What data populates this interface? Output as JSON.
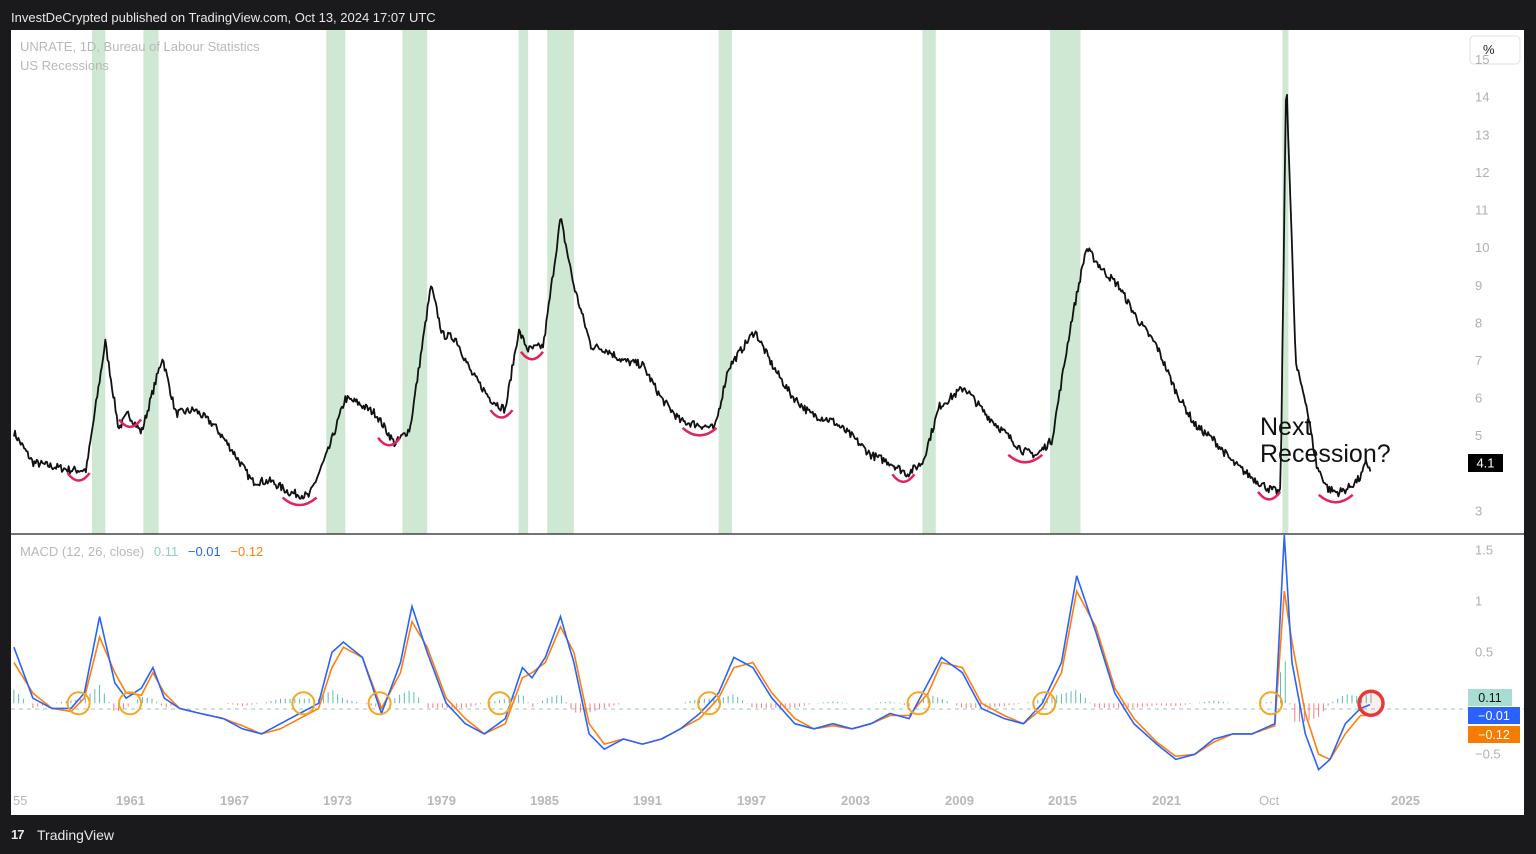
{
  "header": {
    "publisher_line": "InvestDeCrypted published on TradingView.com, Oct 13, 2024 17:07 UTC"
  },
  "footer": {
    "logo_glyph": "17",
    "brand": "TradingView"
  },
  "main_pane": {
    "symbol_legend": "UNRATE, 1D, Bureau of Labour Statistics",
    "indicator_legend": "US Recessions",
    "unit_button": "%",
    "last_value_tag": "4.1",
    "annotation_line1": "Next",
    "annotation_line2": "Recession?",
    "y_ticks": [
      "15",
      "14",
      "13",
      "12",
      "11",
      "10",
      "9",
      "8",
      "7",
      "6",
      "5",
      "3"
    ]
  },
  "macd_pane": {
    "legend_name": "MACD (12, 26, close)",
    "legend_hist": "0.11",
    "legend_macd": "−0.01",
    "legend_signal": "−0.12",
    "y_ticks": [
      "1.5",
      "1",
      "0.5",
      "−0.5"
    ],
    "tag_hist": "0.11",
    "tag_macd": "−0.01",
    "tag_signal": "−0.12"
  },
  "x_axis": {
    "ticks": [
      "55",
      "1961",
      "1967",
      "1973",
      "1979",
      "1985",
      "1991",
      "1997",
      "2003",
      "2009",
      "2015",
      "2021",
      "Oct",
      "2025"
    ]
  },
  "colors": {
    "recession_band": "#cfe8d4",
    "price_line": "#111111",
    "trough_marker": "#e0245e",
    "macd_line": "#2962ff",
    "signal_line": "#ff7f0e",
    "hist_positive": "#26a69a",
    "hist_negative": "#ef5350",
    "crossover_circle": "#f5a623",
    "current_circle": "#e53935"
  },
  "chart_data": [
    {
      "type": "line",
      "series_label": "UNRATE",
      "y_unit": "%",
      "ylim": [
        2.4,
        15.8
      ],
      "recessions": [
        [
          1957.6,
          1958.3
        ],
        [
          1960.3,
          1961.1
        ],
        [
          1969.9,
          1970.9
        ],
        [
          1973.9,
          1975.2
        ],
        [
          1980.0,
          1980.5
        ],
        [
          1981.5,
          1982.9
        ],
        [
          1990.5,
          1991.2
        ],
        [
          2001.2,
          2001.9
        ],
        [
          2007.9,
          2009.5
        ],
        [
          2020.1,
          2020.3
        ]
      ],
      "x": [
        1953.5,
        1954.5,
        1955.5,
        1956.5,
        1957.3,
        1958.3,
        1959.0,
        1959.5,
        1960.2,
        1961.3,
        1962.0,
        1963.0,
        1964.0,
        1965.0,
        1966.0,
        1967.0,
        1968.0,
        1969.0,
        1970.0,
        1970.9,
        1971.5,
        1972.5,
        1973.5,
        1974.3,
        1975.4,
        1976.0,
        1976.7,
        1977.5,
        1978.5,
        1979.3,
        1980.0,
        1980.5,
        1981.3,
        1982.2,
        1982.9,
        1983.8,
        1984.6,
        1985.5,
        1986.5,
        1987.5,
        1988.5,
        1989.5,
        1990.3,
        1991.0,
        1992.4,
        1993.3,
        1994.3,
        1995.3,
        1996.5,
        1997.5,
        1998.5,
        1999.5,
        2000.4,
        2001.2,
        2002.1,
        2003.4,
        2004.5,
        2005.5,
        2006.5,
        2007.2,
        2008.0,
        2009.0,
        2009.8,
        2010.7,
        2011.5,
        2012.5,
        2013.5,
        2014.5,
        2015.5,
        2016.5,
        2017.5,
        2018.5,
        2019.4,
        2020.0,
        2020.3,
        2020.8,
        2021.3,
        2021.9,
        2022.5,
        2023.0,
        2023.5,
        2024.2,
        2024.5,
        2024.75
      ],
      "y": [
        5.1,
        4.3,
        4.2,
        4.1,
        4.1,
        7.5,
        5.2,
        5.6,
        5.1,
        7.1,
        5.6,
        5.7,
        5.3,
        4.6,
        3.8,
        3.8,
        3.5,
        3.4,
        4.6,
        6.0,
        5.9,
        5.6,
        4.8,
        5.2,
        9.0,
        7.7,
        7.6,
        6.7,
        6.0,
        5.7,
        7.8,
        7.3,
        7.4,
        10.8,
        9.0,
        7.4,
        7.3,
        7.0,
        6.9,
        6.0,
        5.4,
        5.3,
        5.2,
        6.8,
        7.8,
        6.9,
        6.1,
        5.6,
        5.4,
        5.0,
        4.5,
        4.3,
        4.0,
        4.3,
        5.8,
        6.3,
        5.6,
        5.1,
        4.6,
        4.5,
        4.9,
        8.0,
        10.0,
        9.4,
        9.0,
        8.1,
        7.4,
        6.2,
        5.3,
        4.9,
        4.3,
        3.9,
        3.6,
        3.5,
        14.7,
        6.9,
        6.0,
        4.2,
        3.6,
        3.5,
        3.6,
        3.9,
        4.3,
        4.1
      ],
      "troughs": [
        1956.9,
        1959.6,
        1968.5,
        1973.2,
        1979.1,
        1980.7,
        1989.5,
        2000.2,
        2006.6,
        2019.4,
        2022.9
      ]
    },
    {
      "type": "line",
      "series_label": "MACD (12, 26, close)",
      "ylim": [
        -0.85,
        1.65
      ],
      "x": [
        1953.5,
        1954.5,
        1955.5,
        1956.5,
        1957.2,
        1958.0,
        1958.8,
        1959.4,
        1960.2,
        1960.8,
        1961.4,
        1962.2,
        1963.3,
        1964.5,
        1965.5,
        1966.5,
        1967.5,
        1968.5,
        1969.5,
        1970.2,
        1970.8,
        1971.8,
        1972.8,
        1973.8,
        1974.4,
        1975.2,
        1976.2,
        1977.2,
        1978.2,
        1979.3,
        1980.2,
        1980.7,
        1981.4,
        1982.2,
        1982.9,
        1983.7,
        1984.5,
        1985.5,
        1986.5,
        1987.5,
        1988.5,
        1989.5,
        1990.5,
        1991.3,
        1992.3,
        1993.3,
        1994.5,
        1995.5,
        1996.5,
        1997.5,
        1998.5,
        1999.5,
        2000.5,
        2001.5,
        2002.2,
        2003.3,
        2004.3,
        2005.5,
        2006.5,
        2007.5,
        2008.5,
        2009.3,
        2010.3,
        2011.3,
        2012.3,
        2013.5,
        2014.5,
        2015.5,
        2016.5,
        2017.5,
        2018.5,
        2019.7,
        2020.2,
        2020.6,
        2021.3,
        2022.0,
        2022.6,
        2023.4,
        2024.2,
        2024.75
      ],
      "macd": [
        0.55,
        0.05,
        -0.05,
        -0.05,
        0.1,
        0.85,
        0.2,
        0.05,
        0.15,
        0.35,
        0.05,
        -0.05,
        -0.1,
        -0.15,
        -0.25,
        -0.3,
        -0.2,
        -0.1,
        0.0,
        0.5,
        0.6,
        0.45,
        -0.1,
        0.4,
        0.95,
        0.5,
        0.0,
        -0.2,
        -0.3,
        -0.15,
        0.35,
        0.25,
        0.45,
        0.85,
        0.4,
        -0.3,
        -0.45,
        -0.35,
        -0.4,
        -0.35,
        -0.25,
        -0.1,
        0.1,
        0.45,
        0.35,
        0.05,
        -0.2,
        -0.25,
        -0.2,
        -0.25,
        -0.2,
        -0.1,
        -0.15,
        0.2,
        0.45,
        0.3,
        -0.05,
        -0.15,
        -0.2,
        0.0,
        0.4,
        1.25,
        0.7,
        0.1,
        -0.2,
        -0.4,
        -0.55,
        -0.5,
        -0.35,
        -0.3,
        -0.3,
        -0.2,
        1.65,
        0.4,
        -0.3,
        -0.65,
        -0.55,
        -0.2,
        -0.05,
        -0.01
      ],
      "signal": [
        0.4,
        0.1,
        -0.05,
        -0.08,
        0.05,
        0.65,
        0.3,
        0.1,
        0.08,
        0.3,
        0.1,
        -0.05,
        -0.1,
        -0.15,
        -0.22,
        -0.3,
        -0.25,
        -0.15,
        -0.05,
        0.35,
        0.55,
        0.45,
        -0.05,
        0.3,
        0.8,
        0.55,
        0.05,
        -0.15,
        -0.3,
        -0.2,
        0.25,
        0.3,
        0.4,
        0.75,
        0.5,
        -0.2,
        -0.4,
        -0.35,
        -0.4,
        -0.35,
        -0.25,
        -0.15,
        0.05,
        0.35,
        0.4,
        0.1,
        -0.15,
        -0.25,
        -0.22,
        -0.25,
        -0.2,
        -0.12,
        -0.12,
        0.1,
        0.4,
        0.35,
        0.0,
        -0.12,
        -0.2,
        -0.05,
        0.3,
        1.1,
        0.75,
        0.15,
        -0.15,
        -0.38,
        -0.52,
        -0.5,
        -0.38,
        -0.3,
        -0.3,
        -0.22,
        1.1,
        0.6,
        -0.1,
        -0.5,
        -0.55,
        -0.3,
        -0.12,
        -0.12
      ],
      "crossovers": [
        1956.9,
        1959.6,
        1968.7,
        1972.7,
        1979.0,
        1990.0,
        2001.0,
        2007.6,
        2019.5
      ],
      "current_marker": 2024.75
    }
  ]
}
